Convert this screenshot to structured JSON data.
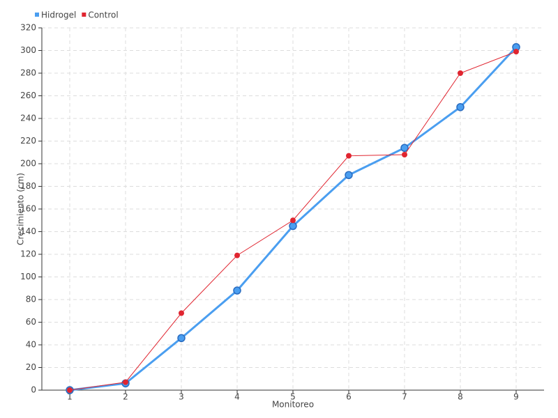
{
  "chart_data": {
    "type": "line",
    "x_label": "Monitoreo",
    "y_label": "Crecimiento (cm)",
    "categories": [
      "1",
      "2",
      "3",
      "4",
      "5",
      "6",
      "7",
      "8",
      "9"
    ],
    "series": [
      {
        "name": "Hidrogel",
        "color": "#4a9ef0",
        "values": [
          0,
          6,
          46,
          88,
          145,
          190,
          214,
          250,
          303
        ]
      },
      {
        "name": "Control",
        "color": "#e02530",
        "values": [
          0,
          7,
          68,
          119,
          150,
          207,
          208,
          280,
          299
        ]
      }
    ],
    "ylim": [
      0,
      320
    ],
    "yticks": [
      0,
      20,
      40,
      60,
      80,
      100,
      120,
      140,
      160,
      180,
      200,
      220,
      240,
      260,
      280,
      300,
      320
    ],
    "grid": true,
    "legend": "top-left"
  }
}
